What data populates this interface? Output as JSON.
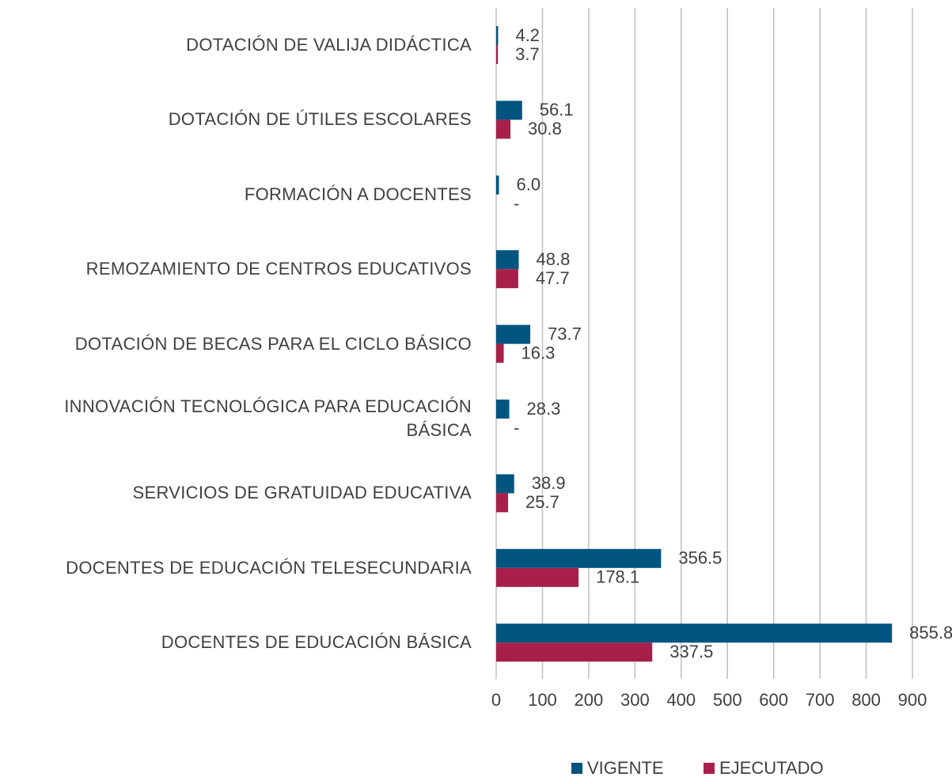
{
  "chart_data": {
    "type": "barh",
    "categories": [
      "DOTACIÓN DE VALIJA DIDÁCTICA",
      "DOTACIÓN DE ÚTILES ESCOLARES",
      "FORMACIÓN A DOCENTES",
      "REMOZAMIENTO DE CENTROS EDUCATIVOS",
      "DOTACIÓN DE BECAS PARA EL CICLO BÁSICO",
      "INNOVACIÓN TECNOLÓGICA PARA EDUCACIÓN BÁSICA",
      "SERVICIOS DE GRATUIDAD EDUCATIVA",
      "DOCENTES DE EDUCACIÓN TELESECUNDARIA",
      "DOCENTES DE EDUCACIÓN BÁSICA"
    ],
    "series": [
      {
        "name": "VIGENTE",
        "color": "#005580",
        "values": [
          4.2,
          56.1,
          6.0,
          48.8,
          73.7,
          28.3,
          38.9,
          356.5,
          855.8
        ],
        "value_labels": [
          "4.2",
          "56.1",
          "6.0",
          "48.8",
          "73.7",
          "28.3",
          "38.9",
          "356.5",
          "855.8"
        ]
      },
      {
        "name": "EJECUTADO",
        "color": "#a8204a",
        "values": [
          3.7,
          30.8,
          0,
          47.7,
          16.3,
          0,
          25.7,
          178.1,
          337.5
        ],
        "value_labels": [
          "3.7",
          "30.8",
          "-",
          "47.7",
          "16.3",
          "-",
          "25.7",
          "178.1",
          "337.5"
        ]
      }
    ],
    "xlim": [
      0,
      900
    ],
    "xticks": [
      0,
      100,
      200,
      300,
      400,
      500,
      600,
      700,
      800,
      900
    ],
    "grid": true,
    "legend": "bottom"
  }
}
